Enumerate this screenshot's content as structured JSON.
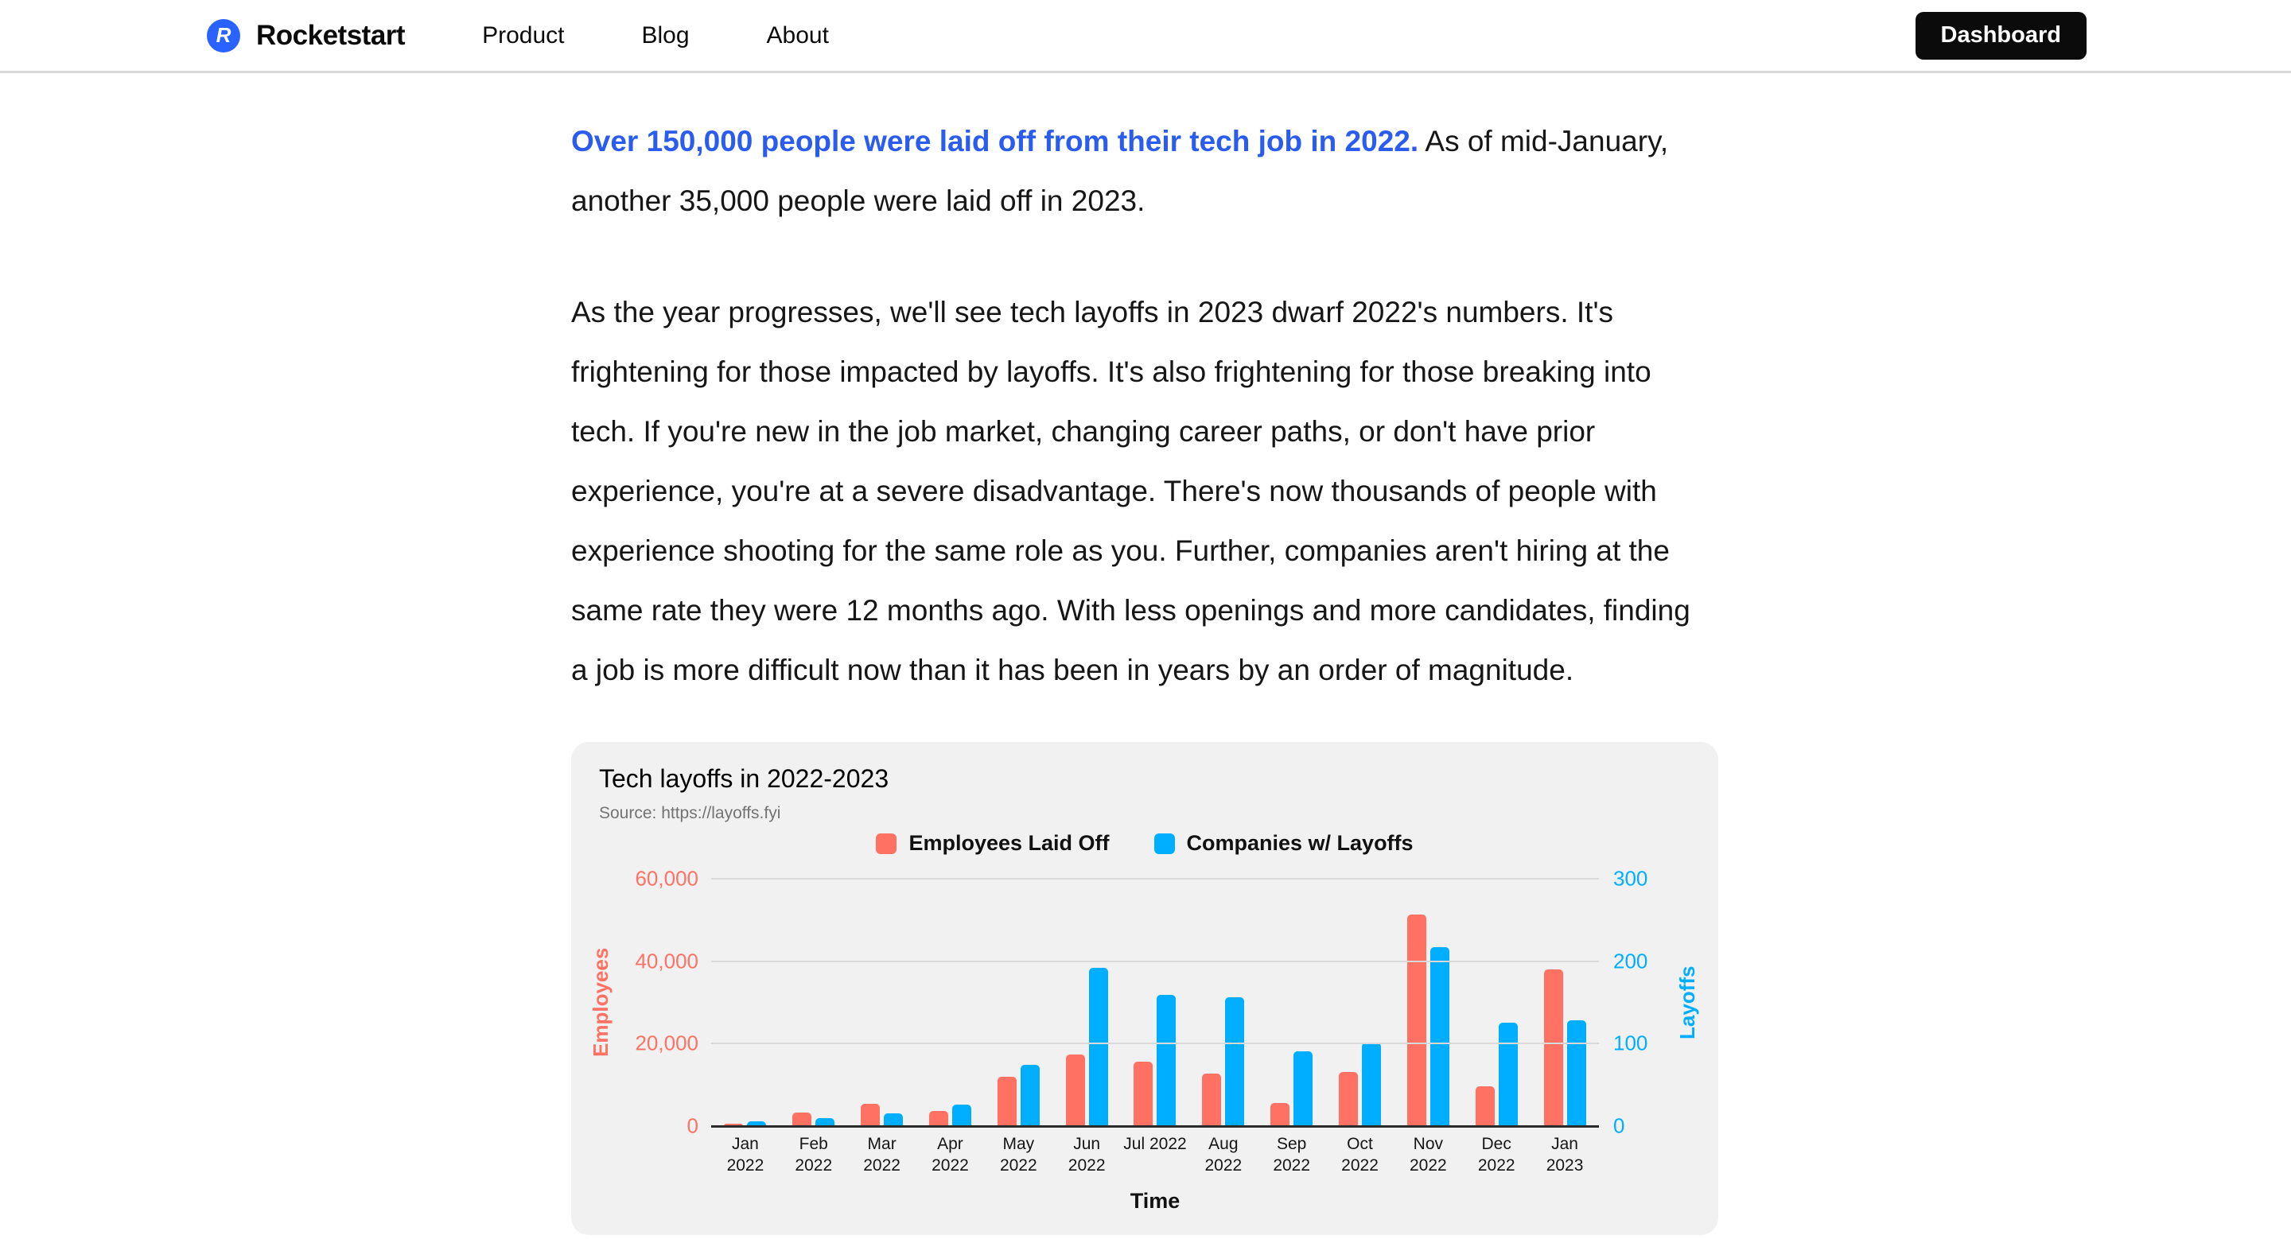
{
  "nav": {
    "brand": "Rocketstart",
    "logo_letter": "R",
    "links": [
      {
        "label": "Product"
      },
      {
        "label": "Blog"
      },
      {
        "label": "About"
      }
    ],
    "dashboard_label": "Dashboard"
  },
  "article": {
    "lead_highlight": "Over 150,000 people were laid off from their tech job in 2022.",
    "lead_rest": " As of mid-January, another 35,000 people were laid off in 2023.",
    "body": "As the year progresses, we'll see tech layoffs in 2023 dwarf 2022's numbers. It's frightening for those impacted by layoffs. It's also frightening for those breaking into tech. If you're new in the job market, changing career paths, or don't have prior experience, you're at a severe disadvantage. There's now thousands of people with experience shooting for the same role as you. Further, companies aren't hiring at the same rate they were 12 months ago. With less openings and more candidates, finding a job is more difficult now than it has been in years by an order of magnitude."
  },
  "chart_data": {
    "type": "bar",
    "title": "Tech layoffs in 2022-2023",
    "source": "Source: https://layoffs.fyi",
    "categories": [
      "Jan 2022",
      "Feb 2022",
      "Mar 2022",
      "Apr 2022",
      "May 2022",
      "Jun 2022",
      "Jul 2022",
      "Aug 2022",
      "Sep 2022",
      "Oct 2022",
      "Nov 2022",
      "Dec 2022",
      "Jan 2023"
    ],
    "categories_display": [
      [
        "Jan",
        "2022"
      ],
      [
        "Feb",
        "2022"
      ],
      [
        "Mar",
        "2022"
      ],
      [
        "Apr",
        "2022"
      ],
      [
        "May",
        "2022"
      ],
      [
        "Jun",
        "2022"
      ],
      [
        "Jul 2022"
      ],
      [
        "Aug",
        "2022"
      ],
      [
        "Sep",
        "2022"
      ],
      [
        "Oct",
        "2022"
      ],
      [
        "Nov",
        "2022"
      ],
      [
        "Dec",
        "2022"
      ],
      [
        "Jan",
        "2023"
      ]
    ],
    "series": [
      {
        "name": "Employees Laid Off",
        "axis": "left",
        "color": "#ff7163",
        "values": [
          600,
          3300,
          5500,
          3700,
          12000,
          17300,
          15700,
          12800,
          5600,
          13100,
          51400,
          9600,
          38000
        ]
      },
      {
        "name": "Companies w/ Layoffs",
        "axis": "right",
        "color": "#00aeff",
        "values": [
          6,
          10,
          15,
          26,
          74,
          192,
          159,
          156,
          91,
          101,
          217,
          125,
          128
        ]
      }
    ],
    "left_axis": {
      "label": "Employees",
      "max": 60000,
      "ticks": [
        0,
        20000,
        40000,
        60000
      ],
      "tick_labels": [
        "0",
        "20,000",
        "40,000",
        "60,000"
      ],
      "color": "#ff7163"
    },
    "right_axis": {
      "label": "Layoffs",
      "max": 300,
      "ticks": [
        0,
        100,
        200,
        300
      ],
      "tick_labels": [
        "0",
        "100",
        "200",
        "300"
      ],
      "color": "#00aeff"
    },
    "xlabel": "Time",
    "legend_position": "top",
    "grid": true
  }
}
